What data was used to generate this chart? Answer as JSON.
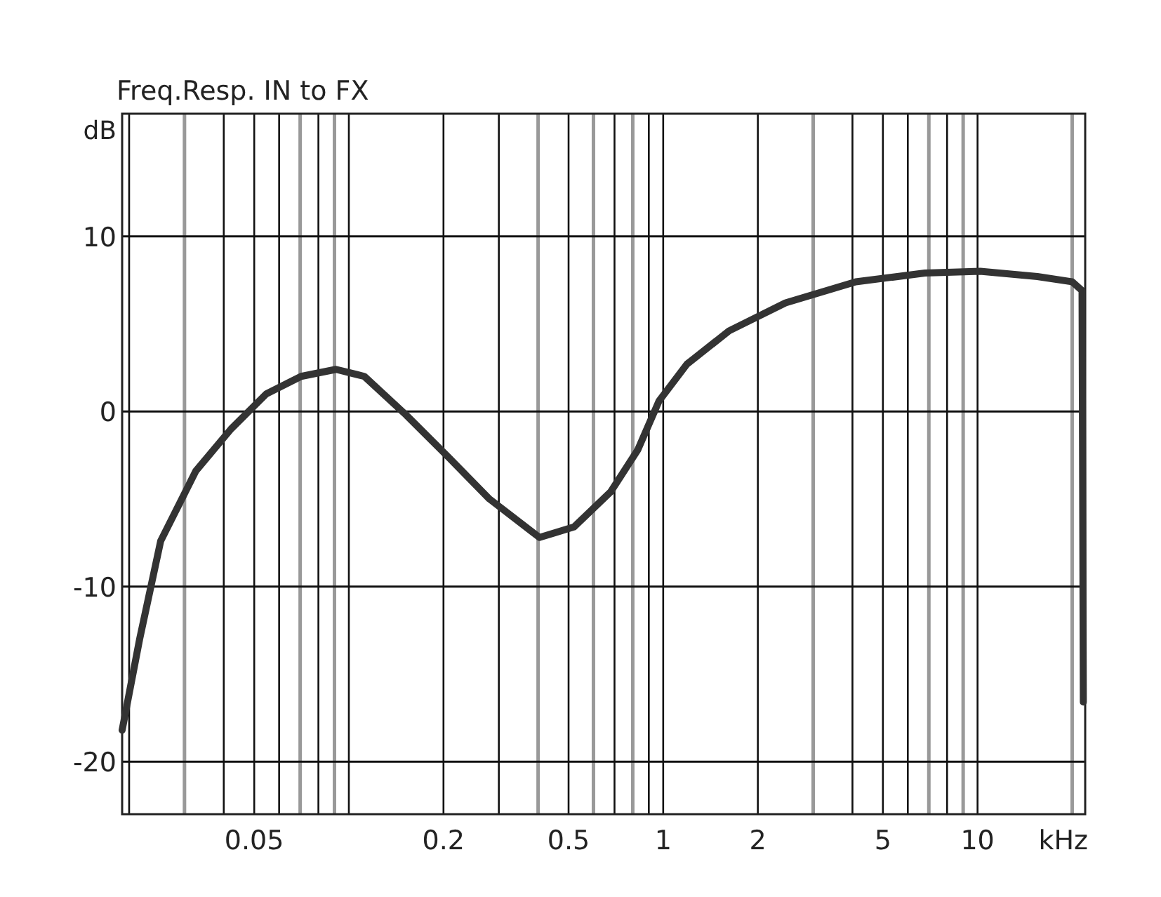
{
  "chart_data": {
    "type": "line",
    "title": "Freq.Resp.  IN to FX",
    "xlabel": "kHz",
    "ylabel": "dB",
    "log": "x",
    "grid": true,
    "line_style": "solid",
    "xlim": [
      0.019,
      22
    ],
    "ylim": [
      -23,
      17
    ],
    "xticks": [
      {
        "value": 0.02,
        "label": null
      },
      {
        "value": 0.03,
        "label": null
      },
      {
        "value": 0.04,
        "label": null
      },
      0.05,
      {
        "value": 0.06,
        "label": null
      },
      {
        "value": 0.07,
        "label": null
      },
      {
        "value": 0.08,
        "label": null
      },
      {
        "value": 0.09,
        "label": null
      },
      {
        "value": 0.1,
        "label": null
      },
      0.2,
      {
        "value": 0.3,
        "label": null
      },
      {
        "value": 0.4,
        "label": null
      },
      0.5,
      {
        "value": 0.6,
        "label": null
      },
      {
        "value": 0.7,
        "label": null
      },
      {
        "value": 0.8,
        "label": null
      },
      {
        "value": 0.9,
        "label": null
      },
      1,
      2,
      {
        "value": 3,
        "label": null
      },
      {
        "value": 4,
        "label": null
      },
      5,
      {
        "value": 6,
        "label": null
      },
      {
        "value": 7,
        "label": null
      },
      {
        "value": 8,
        "label": null
      },
      {
        "value": 9,
        "label": null
      },
      10,
      {
        "value": 20,
        "label": null
      }
    ],
    "yticks": [
      -20,
      -10,
      0,
      10
    ],
    "series": [
      {
        "color": "#333333",
        "x": [
          0.019,
          0.0216,
          0.0252,
          0.0326,
          0.0422,
          0.0546,
          0.0705,
          0.091,
          0.112,
          0.152,
          0.207,
          0.28,
          0.404,
          0.52,
          0.68,
          0.83,
          0.97,
          1.19,
          1.62,
          2.45,
          4.1,
          6.8,
          10.2,
          15.5,
          20,
          21.5,
          21.7
        ],
        "values": [
          -18.2,
          -13,
          -7.4,
          -3.4,
          -1,
          1,
          2,
          2.4,
          2,
          -0.2,
          -2.6,
          -5,
          -7.2,
          -6.6,
          -4.6,
          -2.2,
          0.6,
          2.7,
          4.6,
          6.2,
          7.4,
          7.9,
          8,
          7.7,
          7.4,
          6.9,
          -16.6
        ]
      }
    ]
  }
}
